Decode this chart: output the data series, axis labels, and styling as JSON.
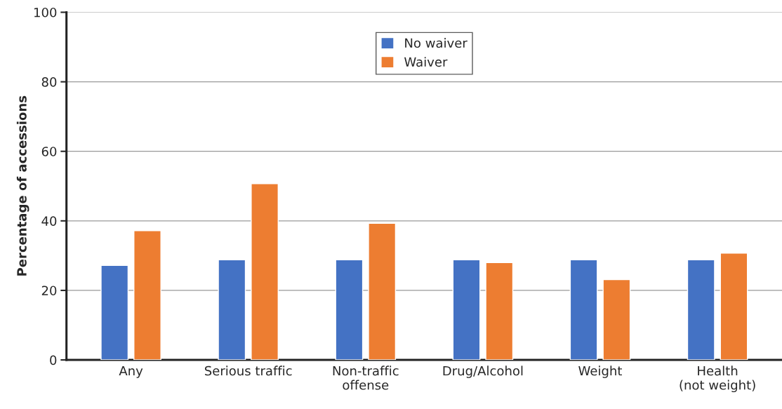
{
  "chart_data": {
    "type": "bar",
    "ylabel": "Percentage of accessions",
    "categories": [
      "Any",
      "Serious traffic",
      "Non-traffic\noffense",
      "Drug/Alcohol",
      "Weight",
      "Health\n(not weight)"
    ],
    "series": [
      {
        "name": "No waiver",
        "color": "#4472c4",
        "values": [
          27.2,
          28.8,
          28.8,
          28.8,
          28.8,
          28.8
        ]
      },
      {
        "name": "Waiver",
        "color": "#ed7d31",
        "values": [
          37.2,
          50.7,
          39.3,
          28.0,
          23.1,
          30.7
        ]
      }
    ],
    "ylim": [
      0,
      100
    ],
    "yticks": [
      0,
      20,
      40,
      60,
      80,
      100
    ],
    "grid": "y",
    "legend": "top"
  }
}
